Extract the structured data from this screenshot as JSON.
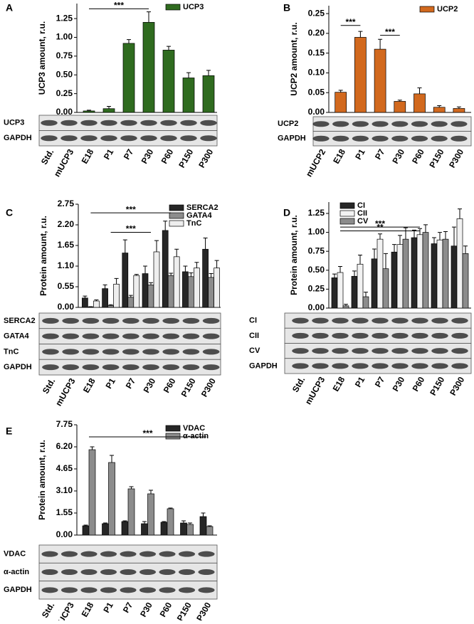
{
  "chart_data": [
    {
      "panel": "A",
      "type": "bar",
      "y_label": "UCP3 amount, r.u.",
      "categories": [
        "Std.",
        "mUCP3",
        "E18",
        "P1",
        "P7",
        "P30",
        "P60",
        "P150",
        "P300"
      ],
      "series": [
        {
          "name": "UCP3",
          "color": "#2f6b1f",
          "values": [
            null,
            null,
            0.02,
            0.05,
            0.92,
            1.2,
            0.83,
            0.46,
            0.49
          ],
          "errors": [
            null,
            null,
            0.01,
            0.03,
            0.05,
            0.14,
            0.05,
            0.07,
            0.07
          ]
        }
      ],
      "ylim": [
        0,
        1.45
      ],
      "yticks": [
        {
          "value": 0,
          "label": "0.00"
        },
        0.25,
        {
          "value": 0.5,
          "label": "0.50"
        },
        0.75,
        {
          "value": 1,
          "label": "1.00"
        },
        1.25
      ],
      "legend": "upper right",
      "significance": [
        {
          "label": "***",
          "from": "E18",
          "to": "P30",
          "y": 1.38
        }
      ],
      "blot_rows": [
        "UCP3",
        "GAPDH"
      ]
    },
    {
      "panel": "B",
      "type": "bar",
      "y_label": "UCP2 amount, r.u.",
      "categories": [
        "mUCP2",
        "E18",
        "P1",
        "P7",
        "P30",
        "P60",
        "P150",
        "P300"
      ],
      "series": [
        {
          "name": "UCP2",
          "color": "#d2691e",
          "values": [
            null,
            0.051,
            0.19,
            0.16,
            0.028,
            0.047,
            0.013,
            0.01
          ],
          "errors": [
            null,
            0.005,
            0.015,
            0.025,
            0.003,
            0.015,
            0.004,
            0.004
          ]
        }
      ],
      "ylim": [
        0,
        0.27
      ],
      "yticks": [
        {
          "value": 0,
          "label": "0.00"
        },
        0.05,
        {
          "value": 0.1,
          "label": "0.10"
        },
        0.15,
        {
          "value": 0.2,
          "label": "0.20"
        },
        0.25
      ],
      "legend": "upper right",
      "significance": [
        {
          "label": "***",
          "from": "E18",
          "to": "P1",
          "y": 0.22
        },
        {
          "label": "***",
          "from": "P7",
          "to": "P30",
          "y": 0.195
        }
      ],
      "blot_rows": [
        "UCP2",
        "GAPDH"
      ]
    },
    {
      "panel": "C",
      "type": "bar",
      "y_label": "Protein amount, r.u.",
      "categories": [
        "Std.",
        "mUCP3",
        "E18",
        "P1",
        "P7",
        "P30",
        "P60",
        "P150",
        "P300"
      ],
      "series": [
        {
          "name": "SERCA2",
          "color": "#262626",
          "values": [
            null,
            null,
            0.25,
            0.5,
            1.45,
            0.9,
            2.05,
            0.95,
            1.55
          ],
          "errors": [
            null,
            null,
            0.05,
            0.1,
            0.35,
            0.2,
            0.25,
            0.15,
            0.3
          ]
        },
        {
          "name": "GATA4",
          "color": "#8c8c8c",
          "values": [
            null,
            null,
            0.01,
            0.05,
            0.27,
            0.6,
            0.85,
            0.82,
            0.8
          ],
          "errors": [
            null,
            null,
            0.01,
            0.02,
            0.05,
            0.06,
            0.06,
            0.1,
            0.1
          ]
        },
        {
          "name": "TnC",
          "color": "#eeeeee",
          "values": [
            null,
            null,
            0.17,
            0.62,
            0.85,
            1.48,
            1.35,
            1.05,
            1.05
          ],
          "errors": [
            null,
            null,
            0.03,
            0.15,
            0.03,
            0.3,
            0.2,
            0.15,
            0.2
          ]
        }
      ],
      "ylim": [
        0,
        2.75
      ],
      "yticks": [
        {
          "value": 0,
          "label": "0.00"
        },
        0.55,
        {
          "value": 1.1,
          "label": "1.10"
        },
        1.65,
        {
          "value": 2.2,
          "label": "2.20"
        },
        2.75
      ],
      "legend": "upper right",
      "significance": [
        {
          "label": "***",
          "from": "E18",
          "to": "P60",
          "y": 2.52
        },
        {
          "label": "***",
          "from": "P1",
          "to": "P30",
          "y": 2.0
        }
      ],
      "blot_rows": [
        "SERCA2",
        "GATA4",
        "TnC",
        "GAPDH"
      ]
    },
    {
      "panel": "D",
      "type": "bar",
      "y_label": "Protein amount, r.u.",
      "categories": [
        "Std.",
        "mUCP3",
        "E18",
        "P1",
        "P7",
        "P30",
        "P60",
        "P150",
        "P300"
      ],
      "series": [
        {
          "name": "CI",
          "color": "#262626",
          "values": [
            null,
            null,
            0.4,
            0.42,
            0.65,
            0.74,
            0.93,
            0.85,
            0.82
          ],
          "errors": [
            null,
            null,
            0.05,
            0.07,
            0.13,
            0.1,
            0.1,
            0.08,
            0.25
          ]
        },
        {
          "name": "CII",
          "color": "#f2f2f2",
          "values": [
            null,
            null,
            0.47,
            0.58,
            0.91,
            0.84,
            0.97,
            0.9,
            1.18
          ],
          "errors": [
            null,
            null,
            0.08,
            0.12,
            0.07,
            0.12,
            0.08,
            0.1,
            0.13
          ]
        },
        {
          "name": "CV",
          "color": "#8c8c8c",
          "values": [
            null,
            null,
            0.03,
            0.15,
            0.52,
            0.91,
            1.0,
            0.91,
            0.72
          ],
          "errors": [
            null,
            null,
            0.02,
            0.06,
            0.2,
            0.15,
            0.1,
            0.1,
            0.1
          ]
        }
      ],
      "ylim": [
        0,
        1.4
      ],
      "yticks": [
        {
          "value": 0,
          "label": "0.00"
        },
        0.25,
        {
          "value": 0.5,
          "label": "0.50"
        },
        0.75,
        {
          "value": 1,
          "label": "1.00"
        },
        1.25
      ],
      "legend": "upper left",
      "significance": [
        {
          "label": "***",
          "from": "E18",
          "to": "P60",
          "y": 1.07
        },
        {
          "label": "**",
          "from": "E18",
          "to": "P60",
          "y": 1.02
        }
      ],
      "blot_rows": [
        "CI",
        "CII",
        "CV",
        "GAPDH"
      ]
    },
    {
      "panel": "E",
      "type": "bar",
      "y_label": "Protein amount, r.u.",
      "categories": [
        "Std.",
        "mUCP3",
        "E18",
        "P1",
        "P7",
        "P30",
        "P60",
        "P150",
        "P300"
      ],
      "series": [
        {
          "name": "VDAC",
          "color": "#262626",
          "values": [
            null,
            null,
            0.65,
            0.8,
            0.95,
            0.8,
            0.9,
            0.85,
            1.3
          ],
          "errors": [
            null,
            null,
            0.05,
            0.05,
            0.05,
            0.15,
            0.05,
            0.15,
            0.25
          ]
        },
        {
          "name": "α-actin",
          "color": "#8c8c8c",
          "values": [
            null,
            null,
            6.0,
            5.1,
            3.25,
            2.9,
            1.85,
            0.75,
            0.6
          ],
          "errors": [
            null,
            null,
            0.2,
            0.5,
            0.15,
            0.25,
            0.05,
            0.1,
            0.05
          ]
        }
      ],
      "ylim": [
        0,
        7.75
      ],
      "yticks": [
        {
          "value": 0,
          "label": "0.00"
        },
        1.55,
        {
          "value": 3.1,
          "label": "3.10"
        },
        4.65,
        {
          "value": 6.2,
          "label": "6.20"
        },
        7.75
      ],
      "legend": "upper right",
      "significance": [
        {
          "label": "***",
          "from": "E18",
          "to": "P300",
          "y": 6.9
        }
      ],
      "blot_rows": [
        "VDAC",
        "α-actin",
        "GAPDH"
      ]
    }
  ]
}
